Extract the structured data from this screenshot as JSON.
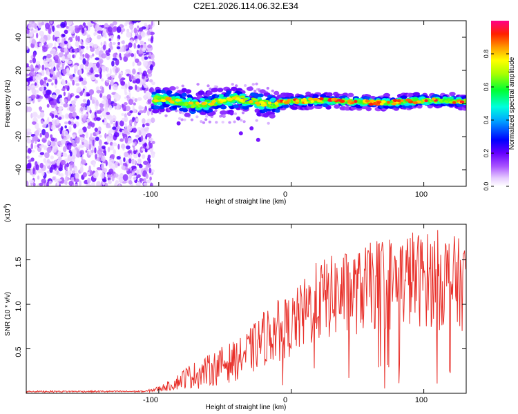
{
  "chart_data": [
    {
      "type": "heatmap",
      "title": "C2E1.2026.114.06.32.E34",
      "xlabel": "Height of straight line (km)",
      "ylabel": "Frequency (Hz)",
      "xlim": [
        -200,
        132
      ],
      "ylim": [
        -50,
        50
      ],
      "x_ticks": [
        -100,
        0,
        100
      ],
      "x_tick_labels": [
        "-100",
        "0",
        "100"
      ],
      "y_ticks": [
        -40,
        -20,
        0,
        20,
        40
      ],
      "y_tick_labels": [
        "-40",
        "-20",
        "0",
        "20",
        "40"
      ],
      "noise_region_x": [
        -200,
        -104
      ],
      "signal_band_hz": [
        -5,
        5
      ],
      "colorbar": {
        "label": "Normalized spectral amplitude",
        "range": [
          0,
          1
        ],
        "ticks": [
          0.0,
          0.2,
          0.4,
          0.6,
          0.8
        ],
        "tick_labels": [
          "0.0",
          "0.2",
          "0.4",
          "0.6",
          "0.8"
        ],
        "colors": [
          "#ffffff",
          "#cc88ff",
          "#7700ff",
          "#0000ff",
          "#00ffff",
          "#00ff00",
          "#ffff00",
          "#ff8800",
          "#ff0000",
          "#ff0088"
        ]
      },
      "grid": false
    },
    {
      "type": "line",
      "xlabel": "Height of straight line (km)",
      "ylabel": "SNR (10 * v/v)",
      "y_multiplier_label": "(x10",
      "y_multiplier_exp": "4",
      "y_multiplier_close": ")",
      "xlim": [
        -200,
        132
      ],
      "ylim": [
        0,
        1.9
      ],
      "x_ticks": [
        -100,
        0,
        100
      ],
      "x_tick_labels": [
        "-100",
        "0",
        "100"
      ],
      "y_ticks": [
        0.5,
        1.0,
        1.5
      ],
      "y_tick_labels": [
        "0.5",
        "1.0",
        "1.5"
      ],
      "series": [
        {
          "name": "SNR",
          "color": "#e8302a",
          "envelope_x": [
            -200,
            -110,
            -100,
            -90,
            -80,
            -70,
            -60,
            -50,
            -40,
            -30,
            -20,
            -10,
            0,
            10,
            20,
            30,
            40,
            50,
            60,
            70,
            80,
            90,
            100,
            110,
            120,
            132
          ],
          "envelope_low": [
            0.01,
            0.01,
            0.02,
            0.03,
            0.05,
            0.05,
            0.08,
            0.1,
            0.15,
            0.2,
            0.3,
            0.35,
            0.4,
            0.45,
            0.55,
            0.6,
            0.6,
            0.65,
            0.7,
            0.65,
            0.7,
            0.7,
            0.75,
            0.7,
            0.7,
            0.7
          ],
          "envelope_high": [
            0.03,
            0.03,
            0.08,
            0.15,
            0.3,
            0.38,
            0.45,
            0.55,
            0.6,
            0.75,
            0.95,
            1.05,
            1.1,
            1.3,
            1.5,
            1.55,
            1.6,
            1.6,
            1.7,
            1.8,
            1.75,
            1.85,
            1.8,
            1.85,
            1.8,
            1.7
          ]
        }
      ],
      "grid": false
    }
  ]
}
